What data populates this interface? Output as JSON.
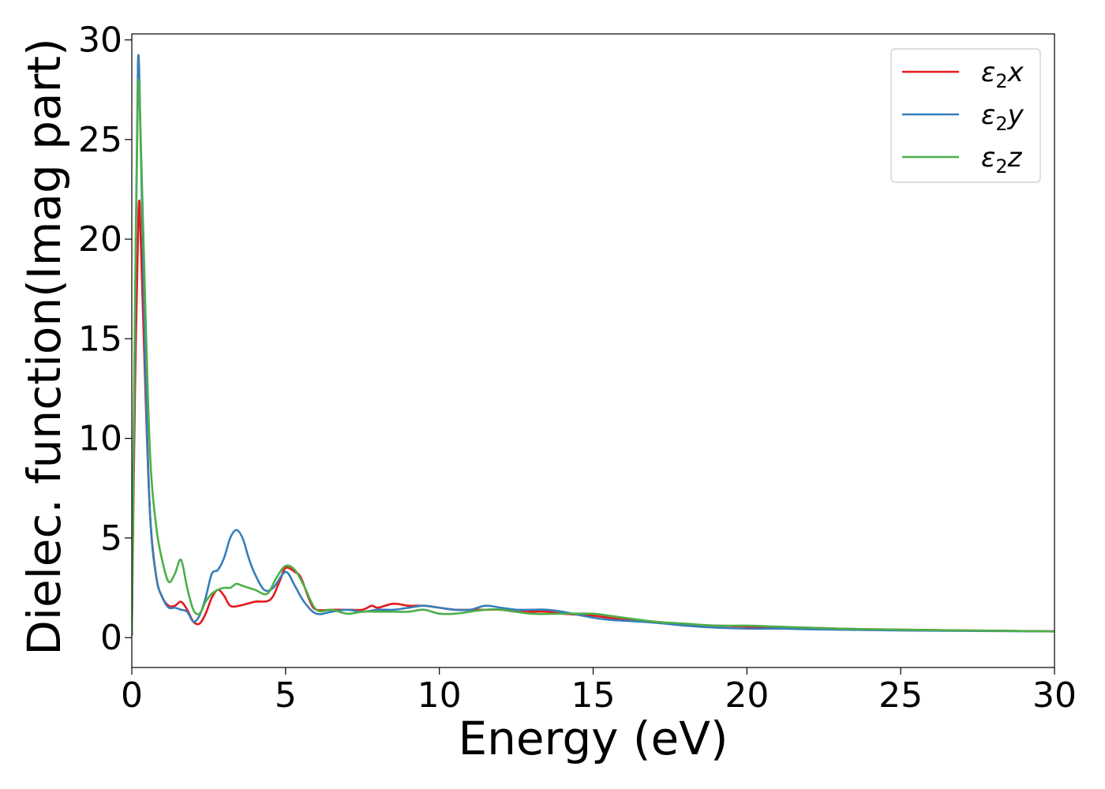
{
  "chart_data": {
    "type": "line",
    "title": "",
    "xlabel": "Energy (eV)",
    "ylabel": "Dielec. function(Imag part)",
    "xlim": [
      0,
      30
    ],
    "ylim": [
      -1.5,
      30.3
    ],
    "xticks": [
      0,
      5,
      10,
      15,
      20,
      25,
      30
    ],
    "xtick_labels": [
      "0",
      "5",
      "10",
      "15",
      "20",
      "25",
      "30"
    ],
    "yticks": [
      0,
      5,
      10,
      15,
      20,
      25,
      30
    ],
    "ytick_labels": [
      "0",
      "5",
      "10",
      "15",
      "20",
      "25",
      "30"
    ],
    "grid": false,
    "legend_position": "top-right",
    "series": [
      {
        "name": "ε2x",
        "legend": {
          "base": "ε",
          "sub": "2",
          "suffix": "x"
        },
        "color": "#e41a1c",
        "x": [
          0,
          0.1,
          0.22,
          0.3,
          0.45,
          0.6,
          0.8,
          1.0,
          1.2,
          1.4,
          1.6,
          1.8,
          2.0,
          2.2,
          2.4,
          2.6,
          2.8,
          3.0,
          3.2,
          3.5,
          4.0,
          4.5,
          4.8,
          5.0,
          5.3,
          5.5,
          5.8,
          6.0,
          6.5,
          7.0,
          7.5,
          7.8,
          8.0,
          8.5,
          9.0,
          9.5,
          10.0,
          10.5,
          11.0,
          11.5,
          12.0,
          12.5,
          13.0,
          13.5,
          14.0,
          15.0,
          15.5,
          16.0,
          17.0,
          18.0,
          19.0,
          20.0,
          21.0,
          22.0,
          23.0,
          24.0,
          25.0,
          26.0,
          27.0,
          28.0,
          29.0,
          30.0
        ],
        "y": [
          0.1,
          12.0,
          21.5,
          19.5,
          12.0,
          6.0,
          3.0,
          2.0,
          1.6,
          1.6,
          1.8,
          1.4,
          0.8,
          0.7,
          1.2,
          2.0,
          2.4,
          2.1,
          1.6,
          1.6,
          1.8,
          1.9,
          2.8,
          3.5,
          3.3,
          3.0,
          1.8,
          1.4,
          1.4,
          1.4,
          1.4,
          1.6,
          1.5,
          1.7,
          1.6,
          1.6,
          1.5,
          1.4,
          1.4,
          1.4,
          1.4,
          1.3,
          1.3,
          1.3,
          1.2,
          1.1,
          1.0,
          0.9,
          0.8,
          0.65,
          0.6,
          0.55,
          0.5,
          0.5,
          0.45,
          0.42,
          0.4,
          0.38,
          0.36,
          0.35,
          0.33,
          0.32
        ]
      },
      {
        "name": "ε2y",
        "legend": {
          "base": "ε",
          "sub": "2",
          "suffix": "y"
        },
        "color": "#377eb8",
        "x": [
          0,
          0.1,
          0.2,
          0.3,
          0.45,
          0.6,
          0.8,
          1.0,
          1.2,
          1.4,
          1.6,
          1.8,
          2.0,
          2.2,
          2.4,
          2.6,
          2.8,
          3.0,
          3.2,
          3.4,
          3.6,
          3.8,
          4.0,
          4.3,
          4.6,
          5.0,
          5.3,
          5.6,
          6.0,
          6.5,
          7.0,
          7.5,
          8.0,
          8.5,
          9.0,
          9.5,
          10.0,
          10.5,
          11.0,
          11.5,
          12.0,
          12.5,
          13.0,
          13.5,
          14.0,
          15.0,
          15.5,
          16.0,
          17.0,
          18.0,
          19.0,
          20.0,
          21.0,
          22.0,
          23.0,
          24.0,
          25.0,
          26.0,
          27.0,
          28.0,
          29.0,
          30.0
        ],
        "y": [
          0.1,
          15.0,
          28.9,
          24.0,
          13.0,
          6.0,
          3.0,
          2.0,
          1.5,
          1.5,
          1.4,
          1.3,
          0.8,
          1.1,
          2.0,
          3.2,
          3.4,
          4.0,
          5.0,
          5.4,
          5.0,
          4.0,
          3.2,
          2.4,
          2.5,
          3.3,
          2.6,
          1.8,
          1.2,
          1.3,
          1.4,
          1.3,
          1.4,
          1.4,
          1.5,
          1.6,
          1.5,
          1.4,
          1.4,
          1.6,
          1.5,
          1.4,
          1.4,
          1.4,
          1.3,
          1.0,
          0.9,
          0.85,
          0.75,
          0.6,
          0.5,
          0.45,
          0.45,
          0.42,
          0.4,
          0.38,
          0.36,
          0.35,
          0.34,
          0.33,
          0.32,
          0.31
        ]
      },
      {
        "name": "ε2z",
        "legend": {
          "base": "ε",
          "sub": "2",
          "suffix": "z"
        },
        "color": "#4daf4a",
        "x": [
          0,
          0.1,
          0.2,
          0.3,
          0.45,
          0.6,
          0.8,
          1.0,
          1.2,
          1.4,
          1.6,
          1.8,
          2.0,
          2.2,
          2.4,
          2.6,
          2.8,
          3.0,
          3.2,
          3.4,
          3.6,
          4.0,
          4.4,
          4.7,
          5.0,
          5.3,
          5.6,
          6.0,
          6.5,
          7.0,
          7.5,
          8.0,
          8.5,
          9.0,
          9.5,
          10.0,
          10.5,
          11.0,
          11.5,
          12.0,
          13.0,
          14.0,
          15.0,
          15.5,
          16.0,
          17.0,
          18.0,
          19.0,
          20.0,
          21.0,
          22.0,
          23.0,
          24.0,
          25.0,
          26.0,
          27.0,
          28.0,
          29.0,
          30.0
        ],
        "y": [
          0.1,
          16.0,
          27.6,
          24.5,
          16.0,
          9.0,
          5.5,
          3.8,
          2.8,
          3.2,
          3.9,
          2.5,
          1.4,
          1.2,
          1.8,
          2.2,
          2.4,
          2.5,
          2.5,
          2.7,
          2.6,
          2.4,
          2.2,
          3.0,
          3.6,
          3.4,
          2.6,
          1.4,
          1.4,
          1.2,
          1.3,
          1.3,
          1.3,
          1.3,
          1.4,
          1.2,
          1.2,
          1.3,
          1.4,
          1.4,
          1.2,
          1.2,
          1.2,
          1.1,
          1.0,
          0.8,
          0.7,
          0.6,
          0.6,
          0.55,
          0.5,
          0.45,
          0.42,
          0.4,
          0.38,
          0.36,
          0.35,
          0.33,
          0.31
        ]
      }
    ]
  }
}
